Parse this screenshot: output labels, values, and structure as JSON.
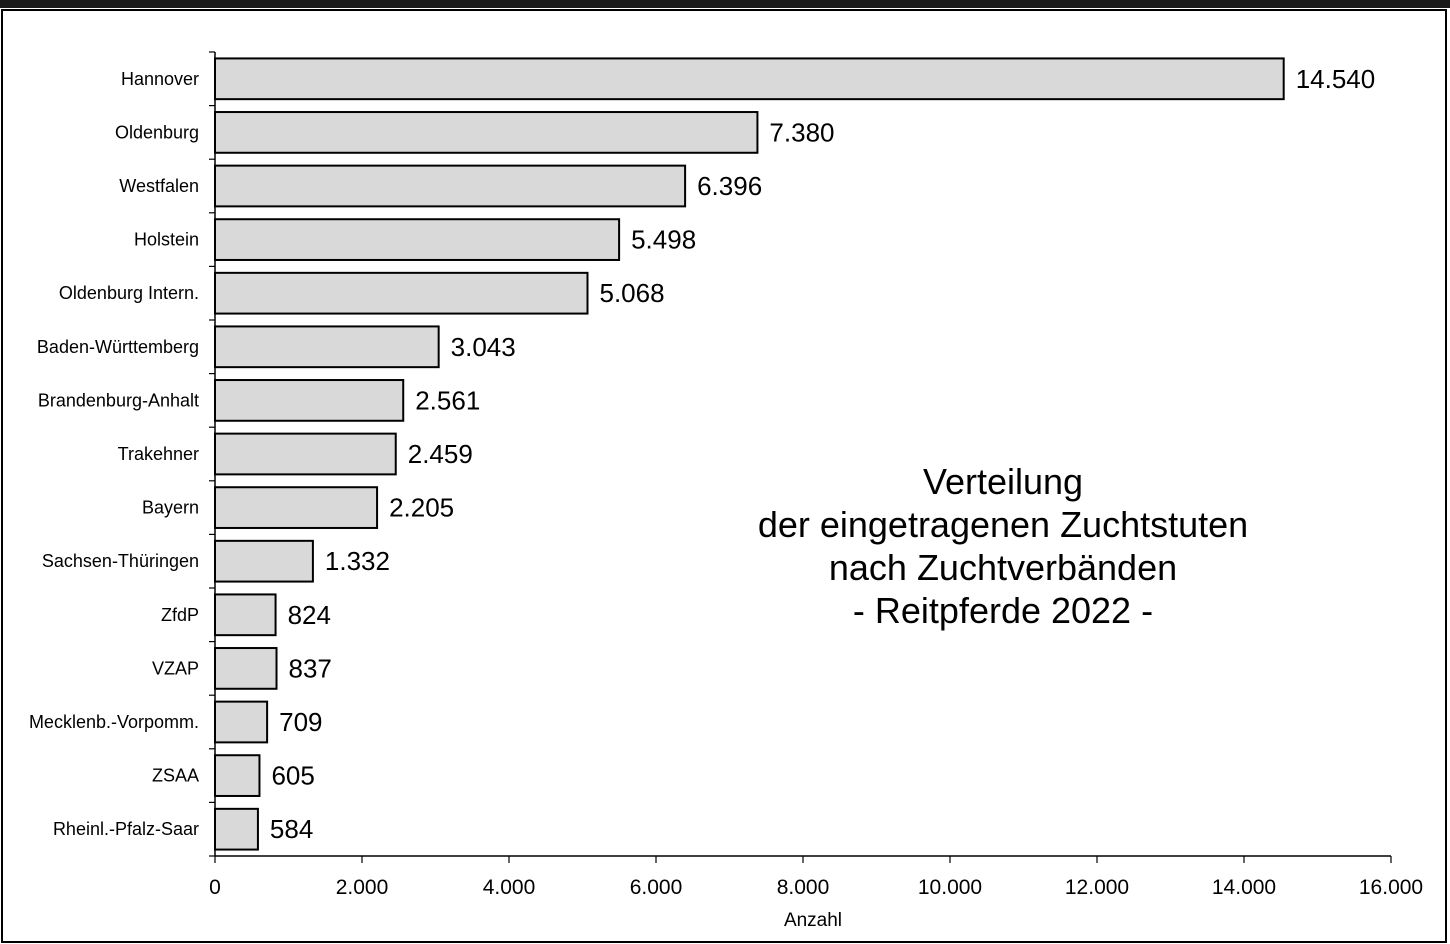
{
  "chart_data": {
    "type": "bar",
    "orientation": "horizontal",
    "title_lines": [
      "Verteilung",
      "der eingetragenen Zuchtstuten",
      "nach Zuchtverbänden",
      "- Reitpferde 2022 -"
    ],
    "xlabel": "Anzahl",
    "ylabel": "",
    "xlim": [
      0,
      16000
    ],
    "xticks": [
      0,
      2000,
      4000,
      6000,
      8000,
      10000,
      12000,
      14000,
      16000
    ],
    "xtick_labels": [
      "0",
      "2.000",
      "4.000",
      "6.000",
      "8.000",
      "10.000",
      "12.000",
      "14.000",
      "16.000"
    ],
    "categories": [
      "Hannover",
      "Oldenburg",
      "Westfalen",
      "Holstein",
      "Oldenburg Intern.",
      "Baden-Württemberg",
      "Brandenburg-Anhalt",
      "Trakehner",
      "Bayern",
      "Sachsen-Thüringen",
      "ZfdP",
      "VZAP",
      "Mecklenb.-Vorpomm.",
      "ZSAA",
      "Rheinl.-Pfalz-Saar"
    ],
    "values": [
      14540,
      7380,
      6396,
      5498,
      5068,
      3043,
      2561,
      2459,
      2205,
      1332,
      824,
      837,
      709,
      605,
      584
    ],
    "value_labels": [
      "14.540",
      "7.380",
      "6.396",
      "5.498",
      "5.068",
      "3.043",
      "2.561",
      "2.459",
      "2.205",
      "1.332",
      "824",
      "837",
      "709",
      "605",
      "584"
    ],
    "bar_color": "#d9d9d9",
    "bar_edge_color": "#000000",
    "grid": false,
    "legend": "none"
  }
}
